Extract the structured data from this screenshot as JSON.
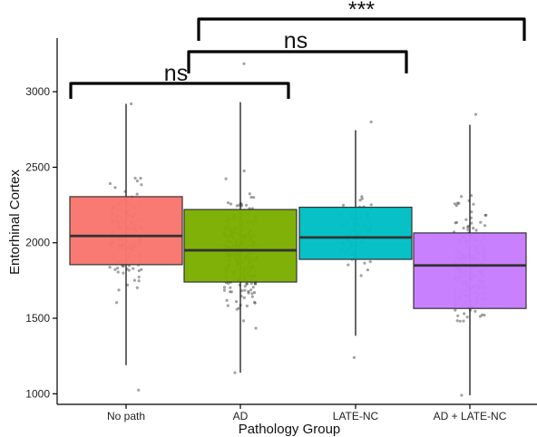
{
  "chart_data": {
    "type": "boxplot",
    "xlabel": "Pathology Group",
    "ylabel": "Entorhinal Cortex",
    "ylim": [
      930,
      3310
    ],
    "yticks": [
      1000,
      1500,
      2000,
      2500,
      3000
    ],
    "grid": false,
    "legend": "none",
    "point_style": "jittered individual points (grey, semi-transparent)",
    "categories": [
      "No path",
      "AD",
      "LATE-NC",
      "AD + LATE-NC"
    ],
    "boxes": [
      {
        "group": "No path",
        "color": "#F8766D",
        "whisker_low": 1190,
        "q1": 1855,
        "median": 2045,
        "q3": 2305,
        "whisker_high": 2920,
        "n_points": 150,
        "point_min": 1025,
        "point_max": 2920
      },
      {
        "group": "AD",
        "color": "#7CAE00",
        "whisker_low": 1140,
        "q1": 1740,
        "median": 1950,
        "q3": 2220,
        "whisker_high": 2930,
        "n_points": 300,
        "point_min": 1140,
        "point_max": 3185
      },
      {
        "group": "LATE-NC",
        "color": "#00BFC4",
        "whisker_low": 1385,
        "q1": 1890,
        "median": 2035,
        "q3": 2235,
        "whisker_high": 2745,
        "n_points": 75,
        "point_min": 1240,
        "point_max": 2800
      },
      {
        "group": "AD + LATE-NC",
        "color": "#C77CFF",
        "whisker_low": 990,
        "q1": 1565,
        "median": 1850,
        "q3": 2065,
        "whisker_high": 2780,
        "n_points": 220,
        "point_min": 990,
        "point_max": 2850
      }
    ],
    "comparisons": [
      {
        "groups": [
          "No path",
          "AD"
        ],
        "label": "ns",
        "bracket_y": 3000
      },
      {
        "groups": [
          "AD",
          "LATE-NC"
        ],
        "label": "ns",
        "bracket_y": 3210
      },
      {
        "groups": [
          "AD",
          "AD + LATE-NC"
        ],
        "label": "***",
        "bracket_y": 3410
      }
    ]
  }
}
